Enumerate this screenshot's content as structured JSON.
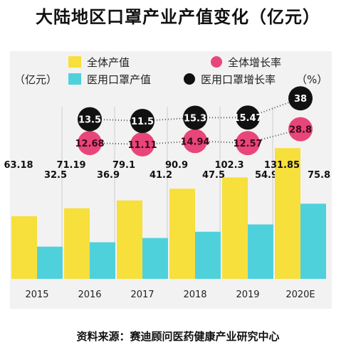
{
  "title": "大陆地区口罩产业产值变化（亿元）",
  "source": "资料来源：赛迪顾问医药健康产业研究中心",
  "unit_label": "（亿元）",
  "pct_label": "（%）",
  "colors": {
    "total_bar": "#f7df3c",
    "medical_bar": "#4fd1dc",
    "total_growth": "#e8467a",
    "medical_growth": "#111111",
    "panel_bg": "#f2f2f2"
  },
  "chart_data": {
    "type": "bar",
    "categories": [
      "2015",
      "2016",
      "2017",
      "2018",
      "2019",
      "2020E"
    ],
    "series": [
      {
        "name": "全体产值",
        "values": [
          63.18,
          71.19,
          79.1,
          90.9,
          102.3,
          131.85
        ]
      },
      {
        "name": "医用口罩产值",
        "values": [
          32.5,
          36.9,
          41.2,
          47.5,
          54.9,
          75.8
        ]
      }
    ],
    "growth_series": [
      {
        "name": "全体增长率",
        "values": [
          null,
          12.68,
          11.11,
          14.94,
          12.57,
          28.8
        ],
        "labels": [
          "",
          "12.68",
          "11.11",
          "14.94",
          "12.57",
          "28.8"
        ]
      },
      {
        "name": "医用口罩增长率",
        "values": [
          null,
          13.5,
          11.5,
          15.3,
          15.47,
          38
        ],
        "labels": [
          "",
          "13.5",
          "11.5",
          "15.3",
          "15.47",
          "38"
        ]
      }
    ],
    "bar_labels": {
      "total": [
        "63.18",
        "71.19",
        "79.1",
        "90.9",
        "102.3",
        "131.85"
      ],
      "medical": [
        "32.5",
        "36.9",
        "41.2",
        "47.5",
        "54.9",
        "75.8"
      ]
    },
    "xlabel": "",
    "ylabel": "",
    "ylim": [
      0,
      165
    ],
    "grid": false,
    "legend_position": "top"
  }
}
